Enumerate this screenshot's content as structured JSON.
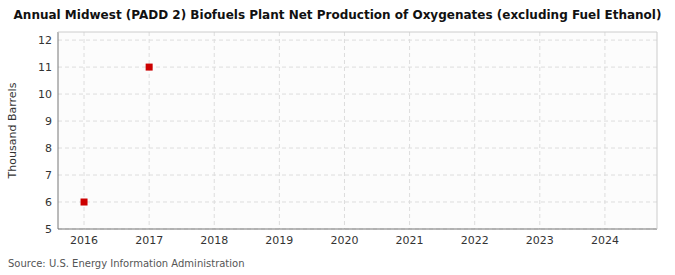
{
  "chart_data": {
    "type": "scatter",
    "title": "Annual Midwest (PADD 2) Biofuels Plant Net Production of Oxygenates (excluding Fuel Ethanol)",
    "ylabel": "Thousand Barrels",
    "annotation": "Source: U.S. Energy Information Administration",
    "x": [
      2016,
      2017
    ],
    "values": [
      6,
      11
    ],
    "color": "#cc0000",
    "marker": "square",
    "xlim": [
      2015.6,
      2024.8
    ],
    "ylim": [
      5,
      12.3
    ],
    "xticks": [
      2016,
      2017,
      2018,
      2019,
      2020,
      2021,
      2022,
      2023,
      2024
    ],
    "yticks": [
      5,
      6,
      7,
      8,
      9,
      10,
      11,
      12
    ],
    "grid": true
  }
}
